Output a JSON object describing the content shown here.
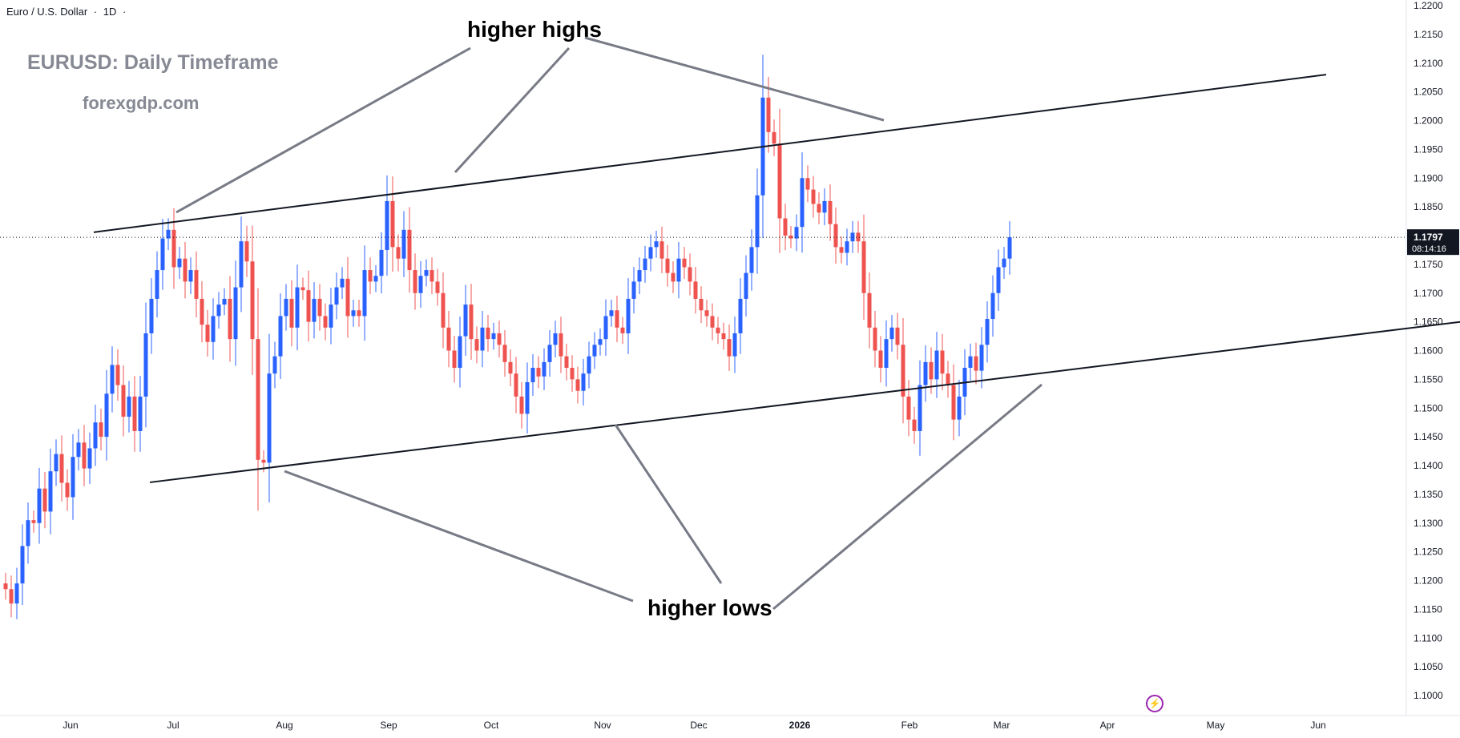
{
  "header": {
    "symbol_name": "Euro / U.S. Dollar",
    "timeframe": "1D"
  },
  "watermark": {
    "title": "EURUSD: Daily Timeframe",
    "site": "forexgdp.com"
  },
  "annotations": {
    "higher_highs": "higher highs",
    "higher_lows": "higher lows"
  },
  "price_label": {
    "price": "1.1797",
    "countdown": "08:14:16"
  },
  "colors": {
    "up": "#2962ff",
    "down": "#ef5350",
    "trendline": "#131722",
    "arrow": "#787b86",
    "accent": "#9c27b0"
  },
  "icons": {
    "replay": "lightning-icon"
  },
  "chart_data": {
    "type": "candlestick",
    "y_axis": {
      "min": 1.095,
      "max": 1.222,
      "ticks": [
        "1.1000",
        "1.1050",
        "1.1100",
        "1.1150",
        "1.1200",
        "1.1250",
        "1.1300",
        "1.1350",
        "1.1400",
        "1.1450",
        "1.1500",
        "1.1550",
        "1.1600",
        "1.1650",
        "1.1700",
        "1.1750",
        "1.1800",
        "1.1850",
        "1.1900",
        "1.1950",
        "1.2000",
        "1.2050",
        "1.2100",
        "1.2150",
        "1.2200"
      ]
    },
    "x_axis": {
      "labels": [
        "Jun",
        "Jul",
        "Aug",
        "Sep",
        "Oct",
        "Nov",
        "Dec",
        "2026",
        "Feb",
        "Mar",
        "Apr",
        "May",
        "Jun"
      ]
    },
    "last_price": 1.1797,
    "closes": [
      1.1185,
      1.116,
      1.1195,
      1.126,
      1.1305,
      1.13,
      1.136,
      1.132,
      1.139,
      1.142,
      1.137,
      1.1345,
      1.1415,
      1.144,
      1.1395,
      1.143,
      1.1475,
      1.145,
      1.1525,
      1.1575,
      1.154,
      1.1485,
      1.152,
      1.146,
      1.152,
      1.163,
      1.169,
      1.174,
      1.1795,
      1.181,
      1.1745,
      1.176,
      1.172,
      1.174,
      1.169,
      1.1645,
      1.1615,
      1.166,
      1.168,
      1.169,
      1.162,
      1.171,
      1.179,
      1.1755,
      1.162,
      1.141,
      1.1405,
      1.156,
      1.159,
      1.166,
      1.169,
      1.164,
      1.171,
      1.1705,
      1.165,
      1.169,
      1.166,
      1.164,
      1.168,
      1.171,
      1.1725,
      1.166,
      1.167,
      1.166,
      1.174,
      1.172,
      1.173,
      1.1775,
      1.186,
      1.178,
      1.176,
      1.181,
      1.174,
      1.17,
      1.173,
      1.174,
      1.172,
      1.17,
      1.164,
      1.16,
      1.157,
      1.1625,
      1.168,
      1.162,
      1.16,
      1.164,
      1.162,
      1.163,
      1.161,
      1.158,
      1.156,
      1.152,
      1.149,
      1.1545,
      1.157,
      1.1555,
      1.158,
      1.161,
      1.163,
      1.159,
      1.157,
      1.155,
      1.153,
      1.156,
      1.159,
      1.161,
      1.162,
      1.166,
      1.167,
      1.164,
      1.163,
      1.169,
      1.172,
      1.174,
      1.176,
      1.178,
      1.179,
      1.176,
      1.1735,
      1.172,
      1.176,
      1.1745,
      1.172,
      1.169,
      1.167,
      1.166,
      1.164,
      1.163,
      1.162,
      1.159,
      1.163,
      1.169,
      1.1735,
      1.178,
      1.187,
      1.204,
      1.198,
      1.196,
      1.183,
      1.18,
      1.1795,
      1.1815,
      1.19,
      1.188,
      1.1855,
      1.184,
      1.186,
      1.182,
      1.178,
      1.177,
      1.179,
      1.1805,
      1.179,
      1.17,
      1.164,
      1.16,
      1.157,
      1.162,
      1.164,
      1.161,
      1.152,
      1.148,
      1.146,
      1.154,
      1.158,
      1.155,
      1.16,
      1.156,
      1.154,
      1.148,
      1.152,
      1.157,
      1.159,
      1.1565,
      1.161,
      1.1655,
      1.17,
      1.1745,
      1.176,
      1.1797
    ],
    "highs_annotated": [
      1.1825,
      1.192,
      1.208
    ],
    "lows_annotated": [
      1.1395,
      1.1465,
      1.1505
    ],
    "trendlines": [
      {
        "name": "upper",
        "from": [
          0,
          1.181
        ],
        "to": [
          154,
          1.208
        ]
      },
      {
        "name": "lower",
        "from": [
          10,
          1.1375
        ],
        "to": [
          178,
          1.165
        ]
      }
    ]
  }
}
